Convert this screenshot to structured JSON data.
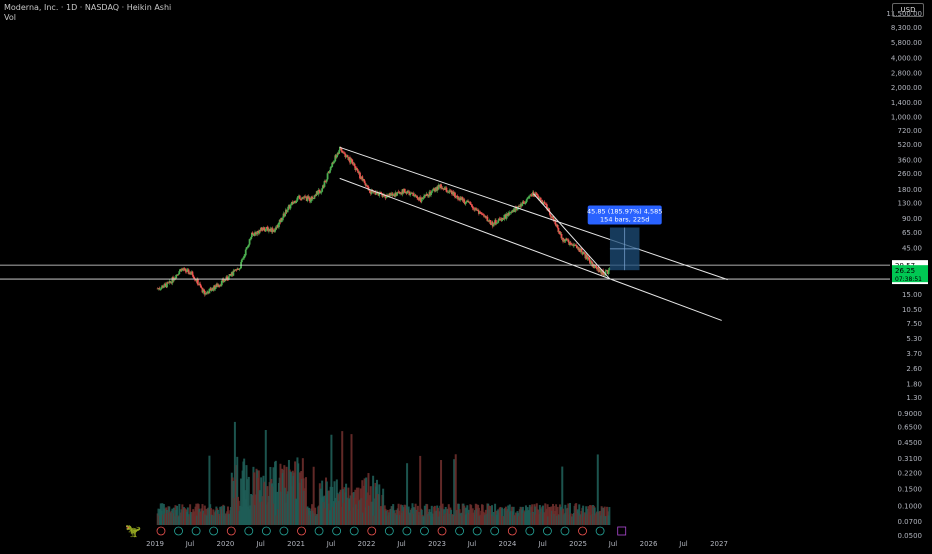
{
  "header": {
    "title": "Moderna, Inc. · 1D · NASDAQ · Heikin Ashi",
    "indicator": "Vol",
    "currency": "USD"
  },
  "icons": {
    "logo": "tradingview-logo-icon"
  },
  "colors": {
    "background": "#000000",
    "axis_text": "#b2b5be",
    "trendline": "#e6e6e6",
    "up": "#26a69a",
    "down": "#ef5350",
    "highlight_up": "#4caf50",
    "measure_box": "#1e4d7a",
    "measure_label": "#2962ff",
    "price_tag": "#00c853"
  },
  "chart_data": [
    {
      "type": "line",
      "title": "",
      "series_kind": "heikin-ashi candles",
      "y_scale": "log",
      "y_ticks": [
        "11,500.00",
        "8,300.00",
        "5,800.00",
        "4,000.00",
        "2,800.00",
        "2,000.00",
        "1,400.00",
        "1,000.00",
        "720.00",
        "520.00",
        "360.00",
        "260.00",
        "180.00",
        "130.00",
        "90.00",
        "65.00",
        "45.00",
        "29.57",
        "26.25",
        "21.27",
        "15.00",
        "10.50",
        "7.50",
        "5.30",
        "3.70",
        "2.60",
        "1.80",
        "1.30",
        "0.9000",
        "0.6500",
        "0.4500",
        "0.3100",
        "0.2200",
        "0.1500",
        "0.1000",
        "0.0700",
        "0.0500"
      ],
      "x_ticks": [
        "2019",
        "Jul",
        "2020",
        "Jul",
        "2021",
        "Jul",
        "2022",
        "Jul",
        "2023",
        "Jul",
        "2024",
        "Jul",
        "2025",
        "Jul",
        "2026",
        "Jul",
        "2027"
      ],
      "price_points": [
        {
          "date": "2019-01",
          "price": 17
        },
        {
          "date": "2019-03",
          "price": 19
        },
        {
          "date": "2019-05",
          "price": 27
        },
        {
          "date": "2019-07",
          "price": 24
        },
        {
          "date": "2019-09",
          "price": 15
        },
        {
          "date": "2019-11",
          "price": 18
        },
        {
          "date": "2020-01",
          "price": 22
        },
        {
          "date": "2020-03",
          "price": 28
        },
        {
          "date": "2020-05",
          "price": 60
        },
        {
          "date": "2020-07",
          "price": 70
        },
        {
          "date": "2020-09",
          "price": 68
        },
        {
          "date": "2020-11",
          "price": 110
        },
        {
          "date": "2021-01",
          "price": 150
        },
        {
          "date": "2021-03",
          "price": 140
        },
        {
          "date": "2021-05",
          "price": 180
        },
        {
          "date": "2021-07",
          "price": 350
        },
        {
          "date": "2021-08",
          "price": 460
        },
        {
          "date": "2021-10",
          "price": 340
        },
        {
          "date": "2022-01",
          "price": 170
        },
        {
          "date": "2022-04",
          "price": 150
        },
        {
          "date": "2022-07",
          "price": 170
        },
        {
          "date": "2022-10",
          "price": 140
        },
        {
          "date": "2023-01",
          "price": 190
        },
        {
          "date": "2023-04",
          "price": 150
        },
        {
          "date": "2023-07",
          "price": 115
        },
        {
          "date": "2023-10",
          "price": 78
        },
        {
          "date": "2024-01",
          "price": 100
        },
        {
          "date": "2024-05",
          "price": 160
        },
        {
          "date": "2024-07",
          "price": 125
        },
        {
          "date": "2024-10",
          "price": 55
        },
        {
          "date": "2025-01",
          "price": 42
        },
        {
          "date": "2025-03",
          "price": 30
        },
        {
          "date": "2025-05",
          "price": 24
        },
        {
          "date": "2025-06",
          "price": 26.25
        }
      ],
      "horizontal_lines": [
        29.57,
        21.27
      ],
      "last_price": "26.25",
      "countdown": "07:38:51",
      "trendlines": [
        {
          "name": "upper channel",
          "from": {
            "date": "2021-08",
            "price": 480
          },
          "to": {
            "date": "2027-02",
            "price": 21
          }
        },
        {
          "name": "lower channel",
          "from": {
            "date": "2021-08",
            "price": 230
          },
          "to": {
            "date": "2027-01",
            "price": 8
          }
        },
        {
          "name": "wedge line",
          "from": {
            "date": "2024-05",
            "price": 160
          },
          "to": {
            "date": "2025-06",
            "price": 21.27
          }
        }
      ],
      "measurement": {
        "label_line1": "45.85 (185.97%) 4,585",
        "label_line2": "154 bars, 225d"
      }
    },
    {
      "type": "bar",
      "title": "",
      "name": "Vol",
      "note": "volume histogram, peaks in 2020 and 2021"
    }
  ]
}
